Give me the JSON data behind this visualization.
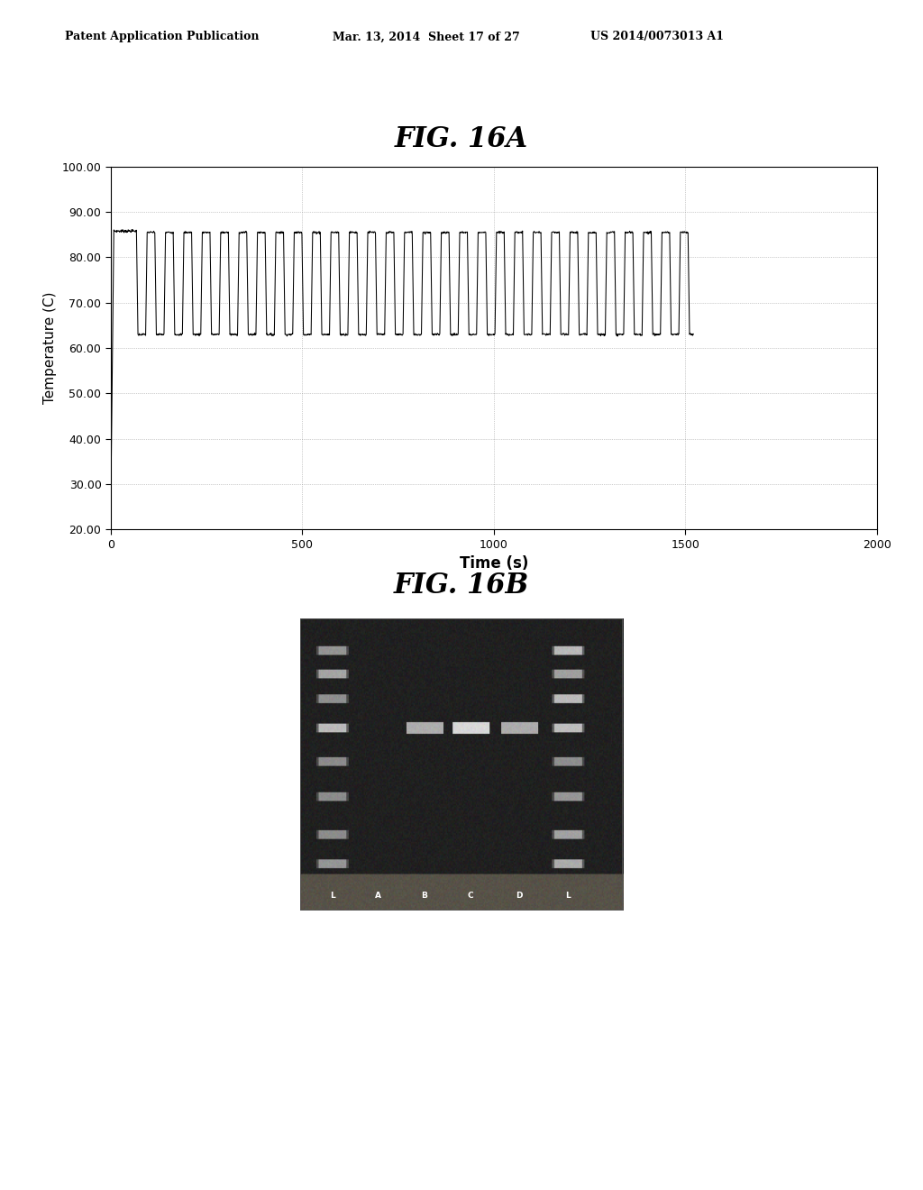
{
  "fig_title_16a": "FIG. 16A",
  "fig_title_16b": "FIG. 16B",
  "patent_header": "Patent Application Publication",
  "patent_date": "Mar. 13, 2014  Sheet 17 of 27",
  "patent_number": "US 2014/0073013 A1",
  "xlabel": "Time (s)",
  "ylabel": "Temperature (C)",
  "xlim": [
    0,
    2000
  ],
  "ylim": [
    20.0,
    100.0
  ],
  "xticks": [
    0,
    500,
    1000,
    1500,
    2000
  ],
  "yticks": [
    20.0,
    30.0,
    40.0,
    50.0,
    60.0,
    70.0,
    80.0,
    90.0,
    100.0
  ],
  "grid_color": "#888888",
  "line_color": "#000000",
  "background_color": "#ffffff",
  "high_temp": 85.5,
  "low_temp": 63.0,
  "initial_high": 85.8,
  "initial_hold_time": 60,
  "num_cycles": 30,
  "high_duration": 24,
  "low_duration": 24,
  "ramp_time": 4,
  "header_fontsize": 9,
  "title_fontsize": 22,
  "xlabel_fontsize": 12,
  "ylabel_fontsize": 11,
  "tick_fontsize": 9
}
